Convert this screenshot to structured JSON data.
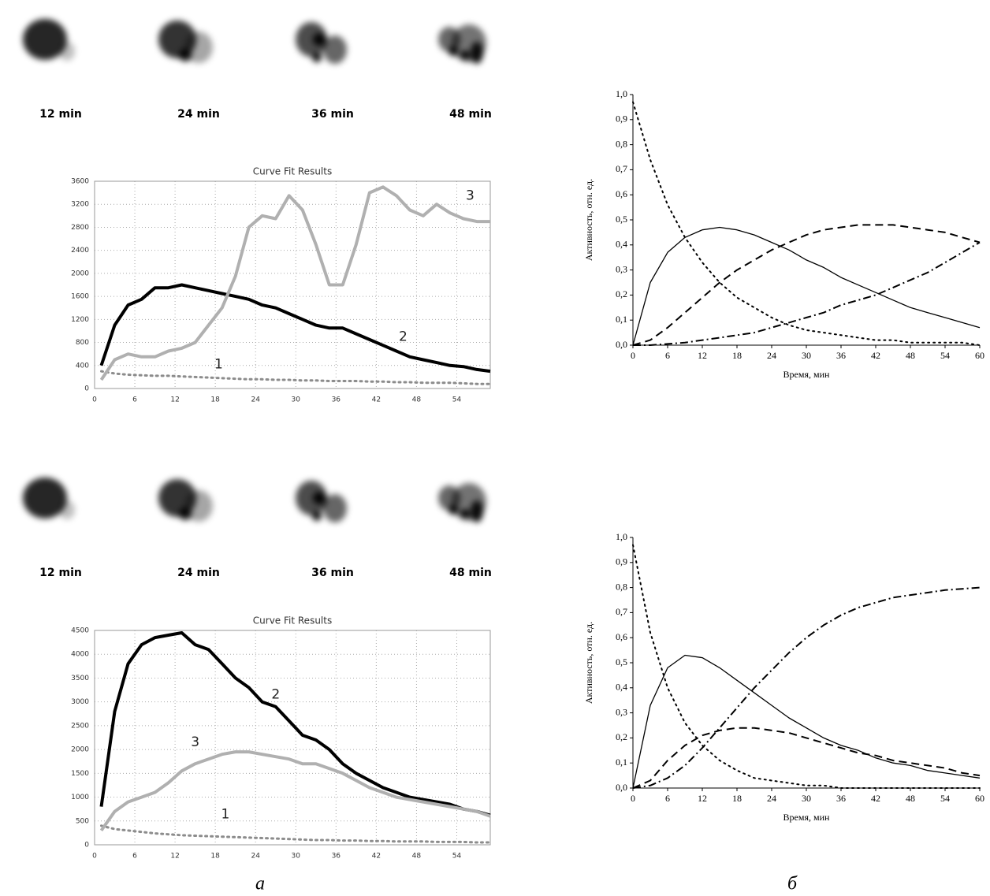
{
  "scan_rows": [
    [
      "12 min",
      "24 min",
      "36 min",
      "48 min"
    ],
    [
      "12 min",
      "24 min",
      "36 min",
      "48 min"
    ]
  ],
  "panel_labels": [
    "а",
    "б"
  ],
  "chart_data": [
    {
      "type": "line",
      "title": "Curve Fit Results",
      "grid": true,
      "x": [
        1,
        3,
        5,
        7,
        9,
        11,
        13,
        15,
        17,
        19,
        21,
        23,
        25,
        27,
        29,
        31,
        33,
        35,
        37,
        39,
        41,
        43,
        45,
        47,
        49,
        51,
        53,
        55,
        57,
        59
      ],
      "xlim": [
        0,
        59
      ],
      "xticks": [
        0,
        6,
        12,
        18,
        24,
        30,
        36,
        42,
        48,
        54
      ],
      "ylim": [
        0,
        3600
      ],
      "yticks": [
        0,
        400,
        800,
        1200,
        1600,
        2000,
        2400,
        2800,
        3200,
        3600
      ],
      "series": [
        {
          "name": "1",
          "color": "#8c8c8c",
          "dash": "dotted",
          "linewidth": 3,
          "values": [
            300,
            260,
            240,
            230,
            220,
            220,
            210,
            200,
            190,
            180,
            170,
            160,
            160,
            150,
            150,
            140,
            140,
            130,
            130,
            130,
            120,
            120,
            110,
            110,
            100,
            100,
            100,
            90,
            80,
            80
          ]
        },
        {
          "name": "2",
          "color": "#000000",
          "dash": "solid",
          "linewidth": 4,
          "values": [
            400,
            1100,
            1450,
            1550,
            1750,
            1750,
            1800,
            1750,
            1700,
            1650,
            1600,
            1550,
            1450,
            1400,
            1300,
            1200,
            1100,
            1050,
            1050,
            950,
            850,
            750,
            650,
            550,
            500,
            450,
            400,
            380,
            330,
            300
          ]
        },
        {
          "name": "3",
          "color": "#b0b0b0",
          "dash": "solid",
          "linewidth": 4,
          "values": [
            150,
            500,
            600,
            550,
            550,
            650,
            700,
            800,
            1100,
            1400,
            1950,
            2800,
            3000,
            2950,
            3350,
            3100,
            2500,
            1800,
            1800,
            2500,
            3400,
            3500,
            3350,
            3100,
            3000,
            3200,
            3050,
            2950,
            2900,
            2900
          ]
        }
      ],
      "annotations": [
        {
          "text": "1",
          "x": 18.5,
          "y": 420
        },
        {
          "text": "2",
          "x": 46,
          "y": 900
        },
        {
          "text": "3",
          "x": 56,
          "y": 3350
        }
      ]
    },
    {
      "type": "line",
      "xlabel": "Время, мин",
      "ylabel": "Активность, отн. ед.",
      "grid": false,
      "x": [
        0,
        3,
        6,
        9,
        12,
        15,
        18,
        21,
        24,
        27,
        30,
        33,
        36,
        39,
        42,
        45,
        48,
        51,
        54,
        57,
        60
      ],
      "xlim": [
        0,
        60
      ],
      "xticks": [
        0,
        6,
        12,
        18,
        24,
        30,
        36,
        42,
        48,
        54,
        60
      ],
      "ylim": [
        0,
        1
      ],
      "yticks": [
        {
          "value": 0,
          "label": "0,0"
        },
        {
          "value": 0.1,
          "label": "0,1"
        },
        {
          "value": 0.2,
          "label": "0,2"
        },
        {
          "value": 0.3,
          "label": "0,3"
        },
        {
          "value": 0.4,
          "label": "0,4"
        },
        {
          "value": 0.5,
          "label": "0,5"
        },
        {
          "value": 0.6,
          "label": "0,6"
        },
        {
          "value": 0.7,
          "label": "0,7"
        },
        {
          "value": 0.8,
          "label": "0,8"
        },
        {
          "value": 0.9,
          "label": "0,9"
        },
        {
          "value": 1,
          "label": "1,0"
        }
      ],
      "series": [
        {
          "color": "#000000",
          "dash": "dotted",
          "linewidth": 2,
          "values": [
            0.97,
            0.74,
            0.56,
            0.43,
            0.33,
            0.25,
            0.19,
            0.15,
            0.11,
            0.08,
            0.06,
            0.05,
            0.04,
            0.03,
            0.02,
            0.02,
            0.01,
            0.01,
            0.01,
            0.01,
            0
          ]
        },
        {
          "color": "#000000",
          "dash": "solid",
          "linewidth": 1.3,
          "values": [
            0,
            0.25,
            0.37,
            0.43,
            0.46,
            0.47,
            0.46,
            0.44,
            0.41,
            0.38,
            0.34,
            0.31,
            0.27,
            0.24,
            0.21,
            0.18,
            0.15,
            0.13,
            0.11,
            0.09,
            0.07
          ]
        },
        {
          "color": "#000000",
          "dash": "dashed",
          "linewidth": 2,
          "values": [
            0,
            0.02,
            0.07,
            0.13,
            0.19,
            0.25,
            0.3,
            0.34,
            0.38,
            0.41,
            0.44,
            0.46,
            0.47,
            0.48,
            0.48,
            0.48,
            0.47,
            0.46,
            0.45,
            0.43,
            0.41
          ]
        },
        {
          "color": "#000000",
          "dash": "dashdot",
          "linewidth": 2,
          "values": [
            0,
            0,
            0.005,
            0.01,
            0.02,
            0.03,
            0.04,
            0.05,
            0.07,
            0.09,
            0.11,
            0.13,
            0.16,
            0.18,
            0.2,
            0.23,
            0.26,
            0.29,
            0.33,
            0.37,
            0.41
          ]
        }
      ]
    },
    {
      "type": "line",
      "title": "Curve Fit Results",
      "grid": true,
      "x": [
        1,
        3,
        5,
        7,
        9,
        11,
        13,
        15,
        17,
        19,
        21,
        23,
        25,
        27,
        29,
        31,
        33,
        35,
        37,
        39,
        41,
        43,
        45,
        47,
        49,
        51,
        53,
        55,
        57,
        59
      ],
      "xlim": [
        0,
        59
      ],
      "xticks": [
        0,
        6,
        12,
        18,
        24,
        30,
        36,
        42,
        48,
        54
      ],
      "ylim": [
        0,
        4500
      ],
      "yticks": [
        0,
        500,
        1000,
        1500,
        2000,
        2500,
        3000,
        3500,
        4000,
        4500
      ],
      "series": [
        {
          "name": "1",
          "color": "#8c8c8c",
          "dash": "dotted",
          "linewidth": 3,
          "values": [
            400,
            330,
            300,
            270,
            240,
            220,
            200,
            190,
            180,
            170,
            160,
            150,
            140,
            130,
            120,
            110,
            100,
            100,
            90,
            90,
            80,
            80,
            70,
            70,
            70,
            60,
            60,
            60,
            50,
            50
          ]
        },
        {
          "name": "2",
          "color": "#000000",
          "dash": "solid",
          "linewidth": 4,
          "values": [
            800,
            2800,
            3800,
            4200,
            4350,
            4400,
            4450,
            4200,
            4100,
            3800,
            3500,
            3300,
            3000,
            2900,
            2600,
            2300,
            2200,
            2000,
            1700,
            1500,
            1350,
            1200,
            1100,
            1000,
            950,
            900,
            850,
            750,
            700,
            620
          ]
        },
        {
          "name": "3",
          "color": "#b0b0b0",
          "dash": "solid",
          "linewidth": 4,
          "values": [
            300,
            700,
            900,
            1000,
            1100,
            1300,
            1550,
            1700,
            1800,
            1900,
            1950,
            1950,
            1900,
            1850,
            1800,
            1700,
            1700,
            1600,
            1500,
            1350,
            1200,
            1100,
            1000,
            950,
            900,
            850,
            800,
            750,
            700,
            600
          ]
        }
      ],
      "annotations": [
        {
          "text": "1",
          "x": 19.5,
          "y": 640
        },
        {
          "text": "2",
          "x": 27,
          "y": 3150
        },
        {
          "text": "3",
          "x": 15,
          "y": 2150
        }
      ]
    },
    {
      "type": "line",
      "xlabel": "Время, мин",
      "ylabel": "Активность, отн. ед.",
      "grid": false,
      "x": [
        0,
        3,
        6,
        9,
        12,
        15,
        18,
        21,
        24,
        27,
        30,
        33,
        36,
        39,
        42,
        45,
        48,
        51,
        54,
        57,
        60
      ],
      "xlim": [
        0,
        60
      ],
      "xticks": [
        0,
        6,
        12,
        18,
        24,
        30,
        36,
        42,
        48,
        54,
        60
      ],
      "ylim": [
        0,
        1
      ],
      "yticks": [
        {
          "value": 0,
          "label": "0,0"
        },
        {
          "value": 0.1,
          "label": "0,1"
        },
        {
          "value": 0.2,
          "label": "0,2"
        },
        {
          "value": 0.3,
          "label": "0,3"
        },
        {
          "value": 0.4,
          "label": "0,4"
        },
        {
          "value": 0.5,
          "label": "0,5"
        },
        {
          "value": 0.6,
          "label": "0,6"
        },
        {
          "value": 0.7,
          "label": "0,7"
        },
        {
          "value": 0.8,
          "label": "0,8"
        },
        {
          "value": 0.9,
          "label": "0,9"
        },
        {
          "value": 1,
          "label": "1,0"
        }
      ],
      "series": [
        {
          "color": "#000000",
          "dash": "dotted",
          "linewidth": 2,
          "values": [
            0.97,
            0.62,
            0.4,
            0.26,
            0.17,
            0.11,
            0.07,
            0.04,
            0.03,
            0.02,
            0.01,
            0.01,
            0,
            0,
            0,
            0,
            0,
            0,
            0,
            0,
            0
          ]
        },
        {
          "color": "#000000",
          "dash": "solid",
          "linewidth": 1.3,
          "values": [
            0,
            0.33,
            0.48,
            0.53,
            0.52,
            0.48,
            0.43,
            0.38,
            0.33,
            0.28,
            0.24,
            0.2,
            0.17,
            0.15,
            0.12,
            0.1,
            0.09,
            0.07,
            0.06,
            0.05,
            0.04
          ]
        },
        {
          "color": "#000000",
          "dash": "dashed",
          "linewidth": 2,
          "values": [
            0,
            0.03,
            0.11,
            0.17,
            0.21,
            0.23,
            0.24,
            0.24,
            0.23,
            0.22,
            0.2,
            0.18,
            0.16,
            0.14,
            0.13,
            0.11,
            0.1,
            0.09,
            0.08,
            0.06,
            0.05
          ]
        },
        {
          "color": "#000000",
          "dash": "dashdot",
          "linewidth": 2,
          "values": [
            0,
            0.01,
            0.04,
            0.09,
            0.16,
            0.24,
            0.32,
            0.4,
            0.47,
            0.54,
            0.6,
            0.65,
            0.69,
            0.72,
            0.74,
            0.76,
            0.77,
            0.78,
            0.79,
            0.795,
            0.8
          ]
        }
      ]
    }
  ]
}
